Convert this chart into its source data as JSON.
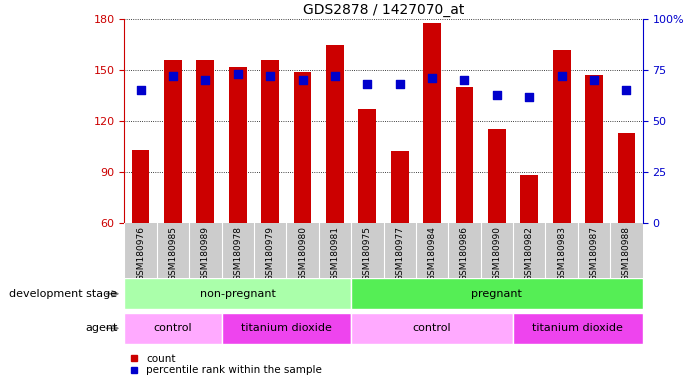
{
  "title": "GDS2878 / 1427070_at",
  "samples": [
    "GSM180976",
    "GSM180985",
    "GSM180989",
    "GSM180978",
    "GSM180979",
    "GSM180980",
    "GSM180981",
    "GSM180975",
    "GSM180977",
    "GSM180984",
    "GSM180986",
    "GSM180990",
    "GSM180982",
    "GSM180983",
    "GSM180987",
    "GSM180988"
  ],
  "counts": [
    103,
    156,
    156,
    152,
    156,
    149,
    165,
    127,
    102,
    178,
    140,
    115,
    88,
    162,
    147,
    113
  ],
  "percentile_ranks": [
    65,
    72,
    70,
    73,
    72,
    70,
    72,
    68,
    68,
    71,
    70,
    63,
    62,
    72,
    70,
    65
  ],
  "ylim_left": [
    60,
    180
  ],
  "ylim_right": [
    0,
    100
  ],
  "yticks_left": [
    60,
    90,
    120,
    150,
    180
  ],
  "yticks_right": [
    0,
    25,
    50,
    75,
    100
  ],
  "bar_color": "#cc0000",
  "dot_color": "#0000cc",
  "bg_color": "#ffffff",
  "tick_bg": "#cccccc",
  "stage_non_pregnant_color": "#aaffaa",
  "stage_pregnant_color": "#55ee55",
  "agent_control_color": "#ffaaff",
  "agent_tio2_color": "#ee44ee",
  "left_axis_color": "#cc0000",
  "right_axis_color": "#0000cc",
  "title_fontsize": 10,
  "tick_fontsize": 6.5,
  "bar_width": 0.55,
  "dot_size": 28,
  "stage_groups": [
    {
      "label": "non-pregnant",
      "start": 0,
      "end": 7
    },
    {
      "label": "pregnant",
      "start": 7,
      "end": 16
    }
  ],
  "agent_groups": [
    {
      "label": "control",
      "start": 0,
      "end": 3
    },
    {
      "label": "titanium dioxide",
      "start": 3,
      "end": 7
    },
    {
      "label": "control",
      "start": 7,
      "end": 12
    },
    {
      "label": "titanium dioxide",
      "start": 12,
      "end": 16
    }
  ]
}
